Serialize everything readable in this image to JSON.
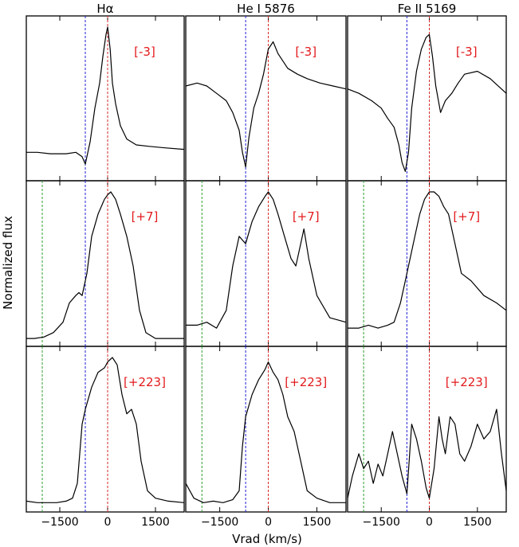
{
  "figure": {
    "ylabel": "Normalized flux",
    "xlabel": "Vrad (km/s)"
  },
  "chart_data": {
    "type": "line",
    "xlim": [
      -2550,
      2400
    ],
    "xticks": [
      -1500,
      0,
      1500
    ],
    "xtick_labels": [
      "−1500",
      "0",
      "1500"
    ],
    "xlabel": "Vrad (km/s)",
    "ylabel": "Normalized flux",
    "columns": [
      "Hα",
      "He I 5876",
      "Fe II 5169"
    ],
    "rows": [
      "[-3]",
      "[+7]",
      "[+223]"
    ],
    "reference_lines": {
      "red": {
        "x": 0,
        "color": "#d62728"
      },
      "blue": {
        "x": -700,
        "color": "#1f1fd6"
      },
      "green": {
        "x": -2050,
        "color": "#2ca02c",
        "rows": [
          "[+7]",
          "[+223]"
        ]
      }
    },
    "panels": [
      {
        "column": "Hα",
        "epoch": "[-3]",
        "x": [
          -2550,
          -2200,
          -1800,
          -1300,
          -1000,
          -800,
          -700,
          -550,
          -400,
          -250,
          -150,
          -50,
          0,
          80,
          150,
          250,
          400,
          600,
          900,
          1300,
          1800,
          2400
        ],
        "y": [
          0.15,
          0.15,
          0.14,
          0.14,
          0.15,
          0.12,
          0.07,
          0.22,
          0.45,
          0.62,
          0.8,
          0.95,
          1.0,
          0.85,
          0.62,
          0.48,
          0.33,
          0.24,
          0.2,
          0.19,
          0.18,
          0.17
        ]
      },
      {
        "column": "He I 5876",
        "epoch": "[-3]",
        "x": [
          -2550,
          -2200,
          -1900,
          -1600,
          -1300,
          -1100,
          -900,
          -800,
          -700,
          -600,
          -450,
          -300,
          -150,
          0,
          150,
          300,
          600,
          900,
          1200,
          1600,
          2000,
          2400
        ],
        "y": [
          0.6,
          0.62,
          0.6,
          0.55,
          0.5,
          0.42,
          0.3,
          0.15,
          0.05,
          0.25,
          0.45,
          0.55,
          0.68,
          0.85,
          0.9,
          0.82,
          0.72,
          0.68,
          0.65,
          0.62,
          0.6,
          0.58
        ]
      },
      {
        "column": "Fe II 5169",
        "epoch": "[-3]",
        "x": [
          -2550,
          -2200,
          -1800,
          -1500,
          -1300,
          -1100,
          -950,
          -850,
          -750,
          -650,
          -550,
          -400,
          -250,
          -100,
          0,
          100,
          200,
          350,
          500,
          700,
          900,
          1100,
          1500,
          1900,
          2400
        ],
        "y": [
          0.58,
          0.55,
          0.5,
          0.45,
          0.38,
          0.32,
          0.2,
          0.08,
          0.02,
          0.15,
          0.45,
          0.7,
          0.85,
          0.93,
          0.95,
          0.8,
          0.6,
          0.42,
          0.5,
          0.55,
          0.62,
          0.68,
          0.7,
          0.65,
          0.55
        ]
      },
      {
        "column": "Hα",
        "epoch": "[+7]",
        "x": [
          -2550,
          -2300,
          -2000,
          -1700,
          -1400,
          -1200,
          -1000,
          -900,
          -800,
          -650,
          -500,
          -300,
          -100,
          0,
          100,
          250,
          400,
          600,
          800,
          1000,
          1200,
          1500,
          1900,
          2400
        ],
        "y": [
          0.01,
          0.01,
          0.02,
          0.05,
          0.12,
          0.25,
          0.3,
          0.32,
          0.3,
          0.45,
          0.7,
          0.85,
          0.95,
          0.98,
          1.0,
          0.95,
          0.85,
          0.7,
          0.5,
          0.2,
          0.05,
          0.01,
          0.01,
          0.01
        ]
      },
      {
        "column": "He I 5876",
        "epoch": "[+7]",
        "x": [
          -2550,
          -2200,
          -1900,
          -1600,
          -1300,
          -1100,
          -900,
          -700,
          -500,
          -300,
          -100,
          0,
          150,
          300,
          500,
          700,
          850,
          1000,
          1100,
          1250,
          1500,
          1900,
          2400
        ],
        "y": [
          0.1,
          0.1,
          0.12,
          0.08,
          0.2,
          0.5,
          0.7,
          0.65,
          0.8,
          0.9,
          0.97,
          1.0,
          0.95,
          0.85,
          0.7,
          0.55,
          0.5,
          0.65,
          0.75,
          0.55,
          0.3,
          0.15,
          0.12
        ]
      },
      {
        "column": "Fe II 5169",
        "epoch": "[+7]",
        "x": [
          -2550,
          -2200,
          -1900,
          -1600,
          -1300,
          -1100,
          -900,
          -750,
          -600,
          -450,
          -300,
          -150,
          0,
          150,
          300,
          450,
          600,
          800,
          1000,
          1300,
          1700,
          2100,
          2400
        ],
        "y": [
          0.08,
          0.08,
          0.1,
          0.08,
          0.1,
          0.12,
          0.25,
          0.4,
          0.55,
          0.7,
          0.85,
          0.95,
          1.0,
          1.0,
          0.97,
          0.9,
          0.85,
          0.65,
          0.45,
          0.4,
          0.3,
          0.25,
          0.2
        ]
      },
      {
        "column": "Hα",
        "epoch": "[+223]",
        "x": [
          -2550,
          -2200,
          -1900,
          -1600,
          -1300,
          -1100,
          -950,
          -800,
          -700,
          -500,
          -300,
          -100,
          0,
          150,
          300,
          450,
          600,
          750,
          900,
          1050,
          1250,
          1500,
          1900,
          2400
        ],
        "y": [
          0.03,
          0.02,
          0.02,
          0.02,
          0.03,
          0.05,
          0.15,
          0.55,
          0.65,
          0.8,
          0.9,
          0.93,
          0.97,
          1.0,
          0.95,
          0.75,
          0.62,
          0.65,
          0.55,
          0.3,
          0.1,
          0.05,
          0.03,
          0.02
        ]
      },
      {
        "column": "He I 5876",
        "epoch": "[+223]",
        "x": [
          -2550,
          -2300,
          -2000,
          -1700,
          -1400,
          -1100,
          -900,
          -800,
          -700,
          -500,
          -300,
          -100,
          0,
          150,
          300,
          450,
          600,
          800,
          1000,
          1200,
          1500,
          1900,
          2400
        ],
        "y": [
          0.15,
          0.05,
          0.02,
          0.03,
          0.02,
          0.04,
          0.1,
          0.4,
          0.6,
          0.75,
          0.85,
          0.92,
          0.97,
          0.9,
          0.85,
          0.75,
          0.6,
          0.5,
          0.3,
          0.1,
          0.05,
          0.02,
          0.02
        ]
      },
      {
        "column": "Fe II 5169",
        "epoch": "[+223]",
        "x": [
          -2550,
          -2400,
          -2200,
          -2050,
          -1900,
          -1750,
          -1600,
          -1450,
          -1300,
          -1150,
          -1000,
          -850,
          -700,
          -550,
          -400,
          -250,
          -100,
          0,
          150,
          300,
          400,
          500,
          650,
          800,
          950,
          1100,
          1300,
          1500,
          1700,
          1900,
          2100,
          2250,
          2400
        ],
        "y": [
          0.05,
          0.2,
          0.35,
          0.25,
          0.3,
          0.15,
          0.28,
          0.2,
          0.35,
          0.5,
          0.35,
          0.2,
          0.08,
          0.55,
          0.45,
          0.3,
          0.12,
          0.05,
          0.25,
          0.6,
          0.45,
          0.35,
          0.6,
          0.55,
          0.35,
          0.3,
          0.4,
          0.55,
          0.45,
          0.5,
          0.65,
          0.35,
          0.1
        ]
      }
    ]
  }
}
